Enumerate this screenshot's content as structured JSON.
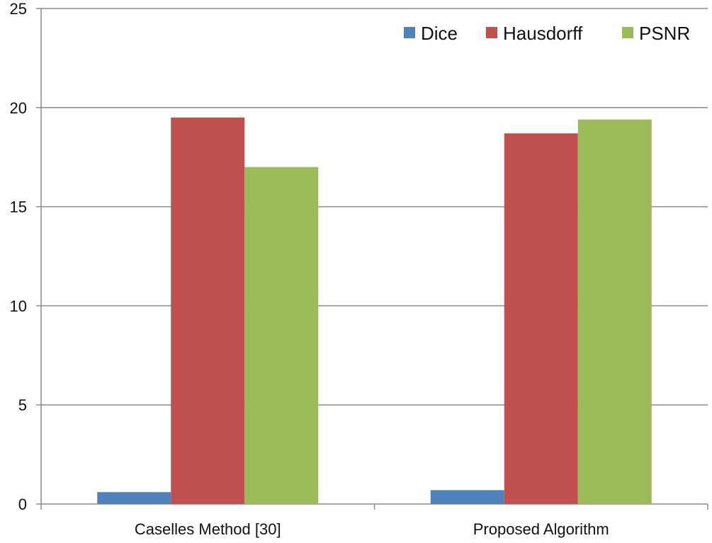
{
  "chart_data": {
    "type": "bar",
    "title": "",
    "xlabel": "",
    "ylabel": "",
    "categories": [
      "Caselles Method [30]",
      "Proposed Algorithm"
    ],
    "series": [
      {
        "name": "Dice",
        "values": [
          0.6,
          0.7
        ],
        "color": "#4f81bd"
      },
      {
        "name": "Hausdorff",
        "values": [
          19.5,
          18.7
        ],
        "color": "#c0504d"
      },
      {
        "name": "PSNR",
        "values": [
          17.0,
          19.4
        ],
        "color": "#9bbb59"
      }
    ],
    "ylim": [
      0,
      25
    ],
    "yticks": [
      0,
      5,
      10,
      15,
      20,
      25
    ],
    "grid": true,
    "legend_position": "top-right"
  }
}
